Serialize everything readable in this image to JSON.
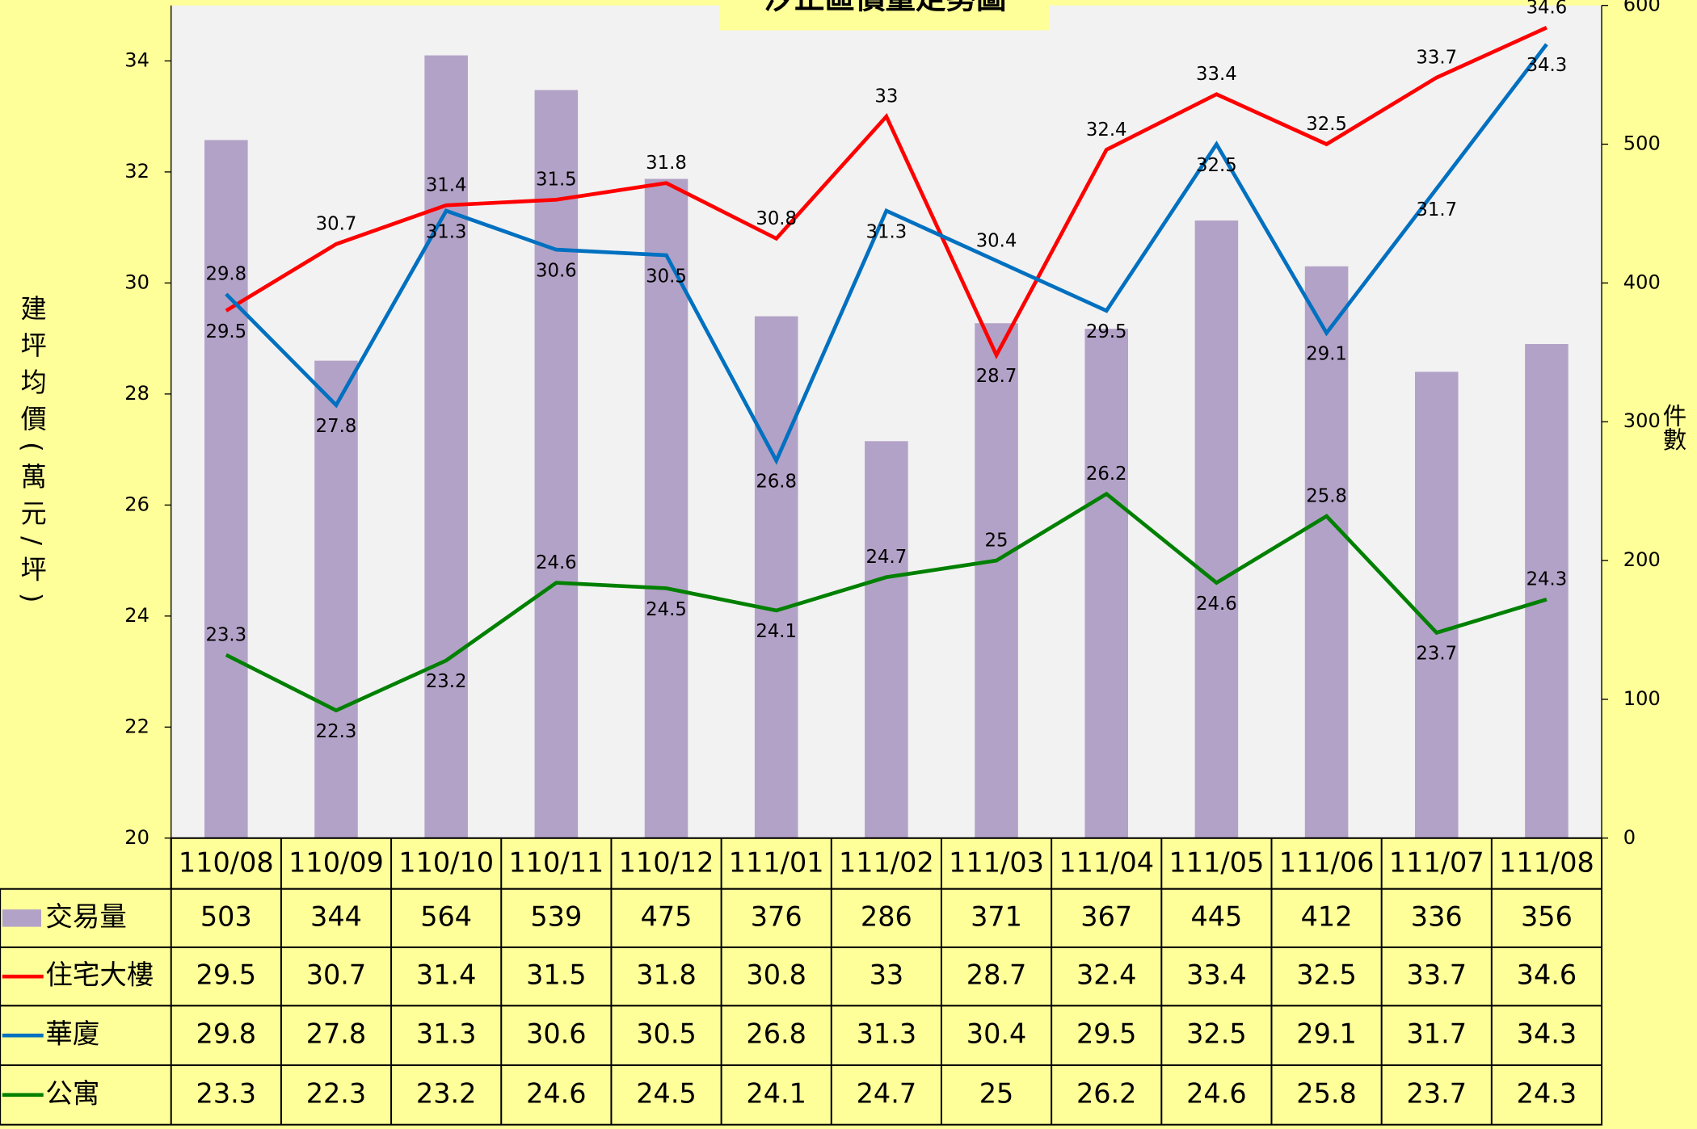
{
  "chart_data": {
    "type": "combo",
    "title": "汐止區價量走勢圖",
    "y_label": "建坪均價(萬元/坪)",
    "y2_label": "件數",
    "categories": [
      "110/08",
      "110/09",
      "110/10",
      "110/11",
      "110/12",
      "111/01",
      "111/02",
      "111/03",
      "111/04",
      "111/05",
      "111/06",
      "111/07",
      "111/08"
    ],
    "ylim": [
      20,
      35
    ],
    "yticks": [
      20,
      22,
      24,
      26,
      28,
      30,
      32,
      34
    ],
    "y2lim": [
      0,
      600
    ],
    "y2ticks": [
      0,
      100,
      200,
      300,
      400,
      500,
      600
    ],
    "series": [
      {
        "name": "交易量",
        "type": "bar",
        "axis": "y2",
        "color": "#b3a2c7",
        "values": [
          503,
          344,
          564,
          539,
          475,
          376,
          286,
          371,
          367,
          445,
          412,
          336,
          356
        ]
      },
      {
        "name": "住宅大樓",
        "type": "line",
        "color": "#ff0000",
        "values": [
          29.5,
          30.7,
          31.4,
          31.5,
          31.8,
          30.8,
          33,
          28.7,
          32.4,
          33.4,
          32.5,
          33.7,
          34.6
        ]
      },
      {
        "name": "華廈",
        "type": "line",
        "color": "#0070c0",
        "values": [
          29.8,
          27.8,
          31.3,
          30.6,
          30.5,
          26.8,
          31.3,
          30.4,
          29.5,
          32.5,
          29.1,
          31.7,
          34.3
        ]
      },
      {
        "name": "公寓",
        "type": "line",
        "color": "#008000",
        "values": [
          23.3,
          22.3,
          23.2,
          24.6,
          24.5,
          24.1,
          24.7,
          25,
          26.2,
          24.6,
          25.8,
          23.7,
          24.3
        ]
      }
    ]
  }
}
